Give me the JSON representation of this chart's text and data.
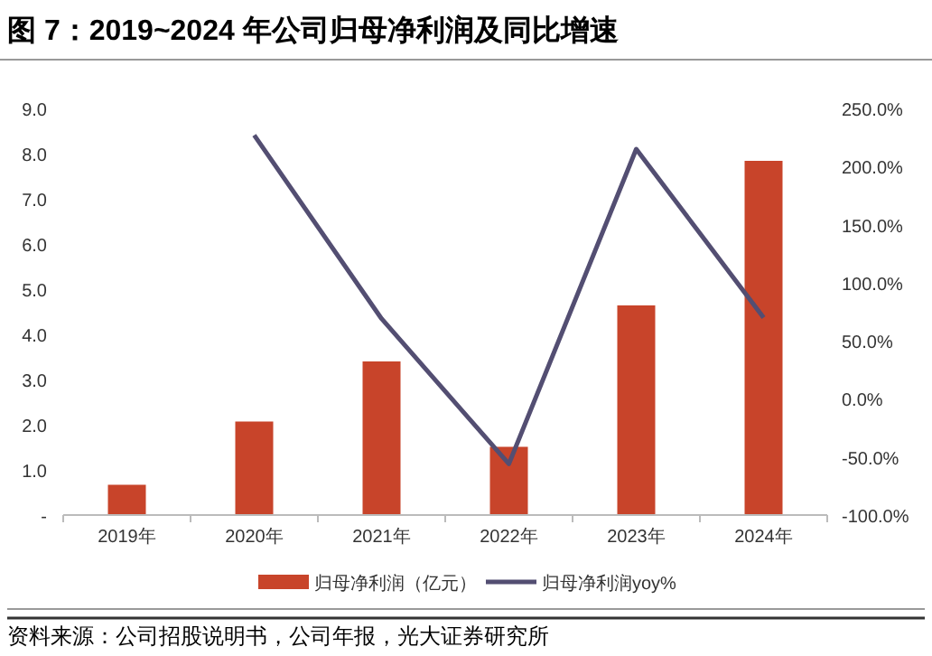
{
  "chart_data": {
    "type": "bar",
    "title": "图 7：2019~2024 年公司归母净利润及同比增速",
    "categories": [
      "2019年",
      "2020年",
      "2021年",
      "2022年",
      "2023年",
      "2024年"
    ],
    "series": [
      {
        "name": "归母净利润（亿元）",
        "color": "#c8442a",
        "values": [
          0.67,
          2.07,
          3.4,
          1.51,
          4.64,
          7.84
        ]
      },
      {
        "name": "归母净利润yoy%",
        "type": "line",
        "axis": "y2",
        "color": "#534e72",
        "values": [
          null,
          227,
          69,
          -56,
          215,
          70
        ]
      }
    ],
    "ylim": [
      0,
      9
    ],
    "yticks": [
      {
        "value": 0,
        "label": "-"
      },
      {
        "value": 1,
        "label": "1.0"
      },
      {
        "value": 2,
        "label": "2.0"
      },
      {
        "value": 3,
        "label": "3.0"
      },
      {
        "value": 4,
        "label": "4.0"
      },
      {
        "value": 5,
        "label": "5.0"
      },
      {
        "value": 6,
        "label": "6.0"
      },
      {
        "value": 7,
        "label": "7.0"
      },
      {
        "value": 8,
        "label": "8.0"
      },
      {
        "value": 9,
        "label": "9.0"
      }
    ],
    "y2lim": [
      -100,
      250
    ],
    "y2ticks": [
      {
        "value": -100,
        "label": "-100.0%"
      },
      {
        "value": -50,
        "label": "-50.0%"
      },
      {
        "value": 0,
        "label": "0.0%"
      },
      {
        "value": 50,
        "label": "50.0%"
      },
      {
        "value": 100,
        "label": "100.0%"
      },
      {
        "value": 150,
        "label": "150.0%"
      },
      {
        "value": 200,
        "label": "200.0%"
      },
      {
        "value": 250,
        "label": "250.0%"
      }
    ],
    "legend": "bottom",
    "annotations": [
      "资料来源：公司招股说明书，公司年报，光大证券研究所"
    ]
  }
}
